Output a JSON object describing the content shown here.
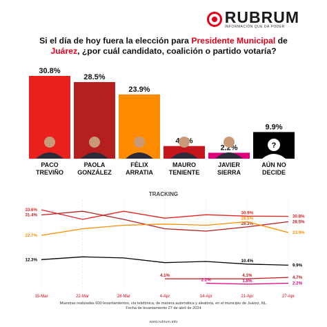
{
  "header": {
    "brand_name": "RUBRUM",
    "brand_tagline": "INFORMACIÓN QUE DA PODER",
    "question_part1": "Si el día de hoy fuera la elección para ",
    "question_highlight1": "Presidente Municipal",
    "question_part2": " de",
    "question_highlight2": "Juárez",
    "question_part3": ", ¿por cuál candidato, coalición o partido votaría?"
  },
  "colors": {
    "accent": "#e3001b",
    "paco": "#e8211f",
    "paola": "#b51f1f",
    "felix": "#ff8c00",
    "mauro": "#c4161c",
    "javier": "#e0007a",
    "no_decide": "#000000"
  },
  "chart_data": [
    {
      "type": "bar",
      "categories": [
        "PACO TREVIÑO",
        "PAOLA GONZÁLEZ",
        "FÉLIX ARRATIA",
        "MAURO TENIENTE",
        "JAVIER SIERRA",
        "AÚN NO DECIDE"
      ],
      "category_lines": [
        [
          "PACO",
          "TREVIÑO"
        ],
        [
          "PAOLA",
          "GONZÁLEZ"
        ],
        [
          "FÉLIX",
          "ARRATIA"
        ],
        [
          "MAURO",
          "TENIENTE"
        ],
        [
          "JAVIER",
          "SIERRA"
        ],
        [
          "AÚN NO",
          "DECIDE"
        ]
      ],
      "values": [
        30.8,
        28.5,
        23.9,
        4.7,
        2.2,
        9.9
      ],
      "value_labels": [
        "30.8%",
        "28.5%",
        "23.9%",
        "4.7%",
        "2.2%",
        "9.9%"
      ],
      "bar_colors": [
        "#e8211f",
        "#b51f1f",
        "#ff8c00",
        "#c4161c",
        "#e0007a",
        "#000000"
      ],
      "photo_icons": [
        "candidate-photo-icon",
        "candidate-photo-icon",
        "candidate-photo-icon",
        "candidate-photo-icon",
        "candidate-photo-icon",
        "question-mark-icon"
      ],
      "ylim": [
        0,
        35
      ]
    },
    {
      "type": "line",
      "title": "TRACKING",
      "x": [
        "15-Mar",
        "22-Mar",
        "28-Mar",
        "4-Apr",
        "14-Apr",
        "21-Apr",
        "27-Apr"
      ],
      "series": [
        {
          "color": "#e8211f",
          "values": [
            33.6,
            29.5,
            33.0,
            30.0,
            31.5,
            30.9,
            30.8
          ],
          "labels": [
            {
              "x": "15-Mar",
              "text": "33.6%"
            },
            {
              "x": "21-Apr",
              "text": "30.9%"
            },
            {
              "x": "27-Apr",
              "text": "30.8%"
            }
          ]
        },
        {
          "color": "#b51f1f",
          "values": [
            31.4,
            33.0,
            29.5,
            25.5,
            24.5,
            26.3,
            28.5
          ],
          "labels": [
            {
              "x": "15-Mar",
              "text": "31.4%"
            },
            {
              "x": "21-Apr",
              "text": "26.3%"
            },
            {
              "x": "27-Apr",
              "text": "28.5%"
            }
          ]
        },
        {
          "color": "#ff8c00",
          "values": [
            22.7,
            25.5,
            27.0,
            27.5,
            27.0,
            28.5,
            23.9
          ],
          "labels": [
            {
              "x": "15-Mar",
              "text": "22.7%"
            },
            {
              "x": "21-Apr",
              "text": "28.5%"
            },
            {
              "x": "27-Apr",
              "text": "23.9%"
            }
          ]
        },
        {
          "color": "#000000",
          "values": [
            12.3,
            13.5,
            13.0,
            11.0,
            11.5,
            10.4,
            9.9
          ],
          "labels": [
            {
              "x": "15-Mar",
              "text": "12.3%"
            },
            {
              "x": "21-Apr",
              "text": "10.4%"
            },
            {
              "x": "27-Apr",
              "text": "9.9%"
            }
          ]
        },
        {
          "color": "#c4161c",
          "values": [
            null,
            null,
            null,
            4.1,
            4.1,
            4.1,
            4.7
          ],
          "labels": [
            {
              "x": "4-Apr",
              "text": "4.1%"
            },
            {
              "x": "21-Apr",
              "text": "4.1%"
            },
            {
              "x": "27-Apr",
              "text": "4.7%"
            }
          ]
        },
        {
          "color": "#e0007a",
          "values": [
            null,
            null,
            null,
            null,
            2.2,
            1.8,
            2.2
          ],
          "labels": [
            {
              "x": "14-Apr",
              "text": "2.2%"
            },
            {
              "x": "21-Apr",
              "text": "1.8%"
            },
            {
              "x": "27-Apr",
              "text": "2.2%"
            }
          ]
        }
      ],
      "ylim": [
        0,
        36
      ]
    }
  ],
  "footer": {
    "line1": "Muestras realizadas 600 levantamientos, vía telefónica, de manera automática y aleatoria, en el municipio de Juárez, NL.",
    "line2": "Fecha de levantamiento 27 de abril de 2024",
    "credit": "www.rubrum.info"
  }
}
